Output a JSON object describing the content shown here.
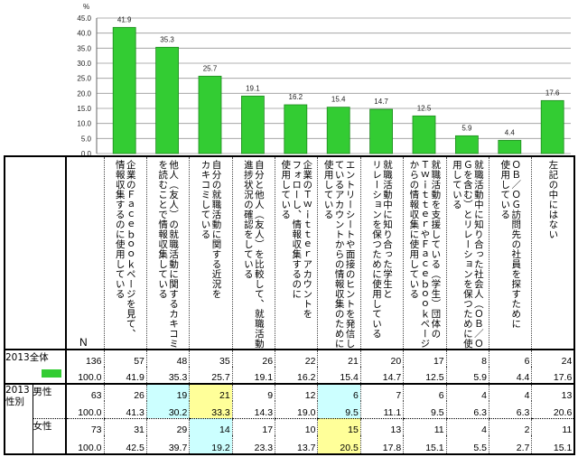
{
  "chart_data": {
    "type": "bar",
    "ylabel": "%",
    "ylim": [
      0,
      45
    ],
    "yticks": [
      "0.0",
      "5.0",
      "10.0",
      "15.0",
      "20.0",
      "25.0",
      "30.0",
      "35.0",
      "40.0",
      "45.0"
    ],
    "grid": true,
    "bar_color": "#33cc33",
    "values": [
      41.9,
      35.3,
      25.7,
      19.1,
      16.2,
      15.4,
      14.7,
      12.5,
      5.9,
      4.4,
      17.6
    ],
    "data_labels": [
      "41.9",
      "35.3",
      "25.7",
      "19.1",
      "16.2",
      "15.4",
      "14.7",
      "12.5",
      "5.9",
      "4.4",
      "17.6"
    ]
  },
  "table": {
    "n_header": "N",
    "columns": [
      "企業のＦａｃｅｂｏｏｋページを見て、\n情報収集するのに使用している",
      "他人（友人）の就職活動に関するカキコミ\nを読むことで情報収集している",
      "自分の就職活動に関する近況を\nカキコミしている",
      "自分と他人（友人）を比較して、就職活動\n進捗状況の確認をしている",
      "企業のＴｗｉｔｔｅｒアカウントを\nフォローし、情報収集するのに\n使用している",
      "エントリーシートや面接のヒントを発信し\nているアカウントからの情報収集のために\n使用している",
      "就職活動中に知り合った学生と\nリレーションを保つために使用している",
      "就職活動を支援している（学生）団体の\nＴｗｉｔｔｅｒやＦａｃｅｂｏｏｋページ\nからの情報収集に使用している",
      "就職活動中に知り合った社会人（ＯＢ／Ｏ\nＧを含む）とリレーションを保つために使\n用している",
      "ＯＢ／ＯＧ訪問先の社員を探すために\n使用している",
      "左記の中にはない"
    ],
    "rows": [
      {
        "group": "2013全体",
        "label": "",
        "legend": true,
        "counts": [
          "136",
          "57",
          "48",
          "35",
          "26",
          "22",
          "21",
          "20",
          "17",
          "8",
          "6",
          "24"
        ],
        "percents": [
          "100.0",
          "41.9",
          "35.3",
          "25.7",
          "19.1",
          "16.2",
          "15.4",
          "14.7",
          "12.5",
          "5.9",
          "4.4",
          "17.6"
        ],
        "highlights": {}
      },
      {
        "group": "2013\n性別",
        "label": "男性",
        "legend": false,
        "counts": [
          "63",
          "26",
          "19",
          "21",
          "9",
          "12",
          "6",
          "7",
          "6",
          "4",
          "4",
          "13"
        ],
        "percents": [
          "100.0",
          "41.3",
          "30.2",
          "33.3",
          "14.3",
          "19.0",
          "9.5",
          "11.1",
          "9.5",
          "6.3",
          "6.3",
          "20.6"
        ],
        "highlights": {
          "2": "cyan",
          "3": "yellow",
          "6": "cyan"
        }
      },
      {
        "group": "",
        "label": "女性",
        "legend": false,
        "counts": [
          "73",
          "31",
          "29",
          "14",
          "17",
          "10",
          "15",
          "13",
          "11",
          "4",
          "2",
          "11"
        ],
        "percents": [
          "100.0",
          "42.5",
          "39.7",
          "19.2",
          "23.3",
          "13.7",
          "20.5",
          "17.8",
          "15.1",
          "5.5",
          "2.7",
          "15.1"
        ],
        "highlights": {
          "3": "cyan",
          "6": "yellow"
        }
      }
    ],
    "highlight_colors": {
      "cyan": "#ccffff",
      "yellow": "#ffff99"
    }
  }
}
